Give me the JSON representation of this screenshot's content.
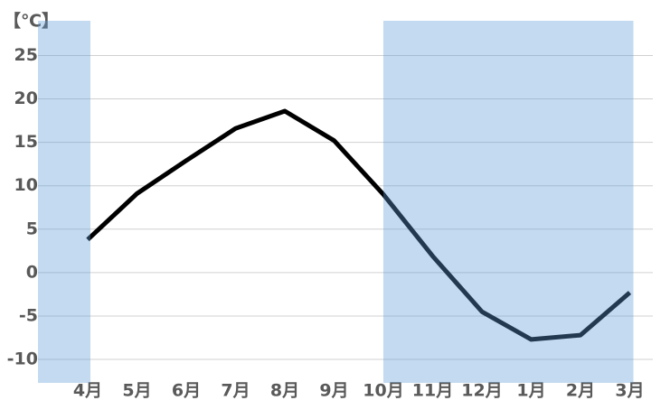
{
  "chart_data": {
    "type": "line",
    "y_label": "【℃】",
    "categories": [
      "4月",
      "5月",
      "6月",
      "7月",
      "8月",
      "9月",
      "10月",
      "11月",
      "12月",
      "1月",
      "2月",
      "3月"
    ],
    "series": [
      {
        "color": "#000000",
        "values": [
          3.8,
          9.1,
          12.9,
          16.6,
          18.6,
          15.2,
          9.0,
          1.9,
          -4.5,
          -7.7,
          -7.2,
          -2.3
        ]
      }
    ],
    "ylim": [
      -12.7,
      29
    ],
    "yticks": [
      -10,
      -5,
      0,
      5,
      10,
      15,
      20,
      25
    ],
    "grid": true,
    "shaded": [
      {
        "from": 0,
        "to": 0
      },
      {
        "from": 6,
        "to": 11
      }
    ],
    "shade_color": "#5b9bd5"
  }
}
